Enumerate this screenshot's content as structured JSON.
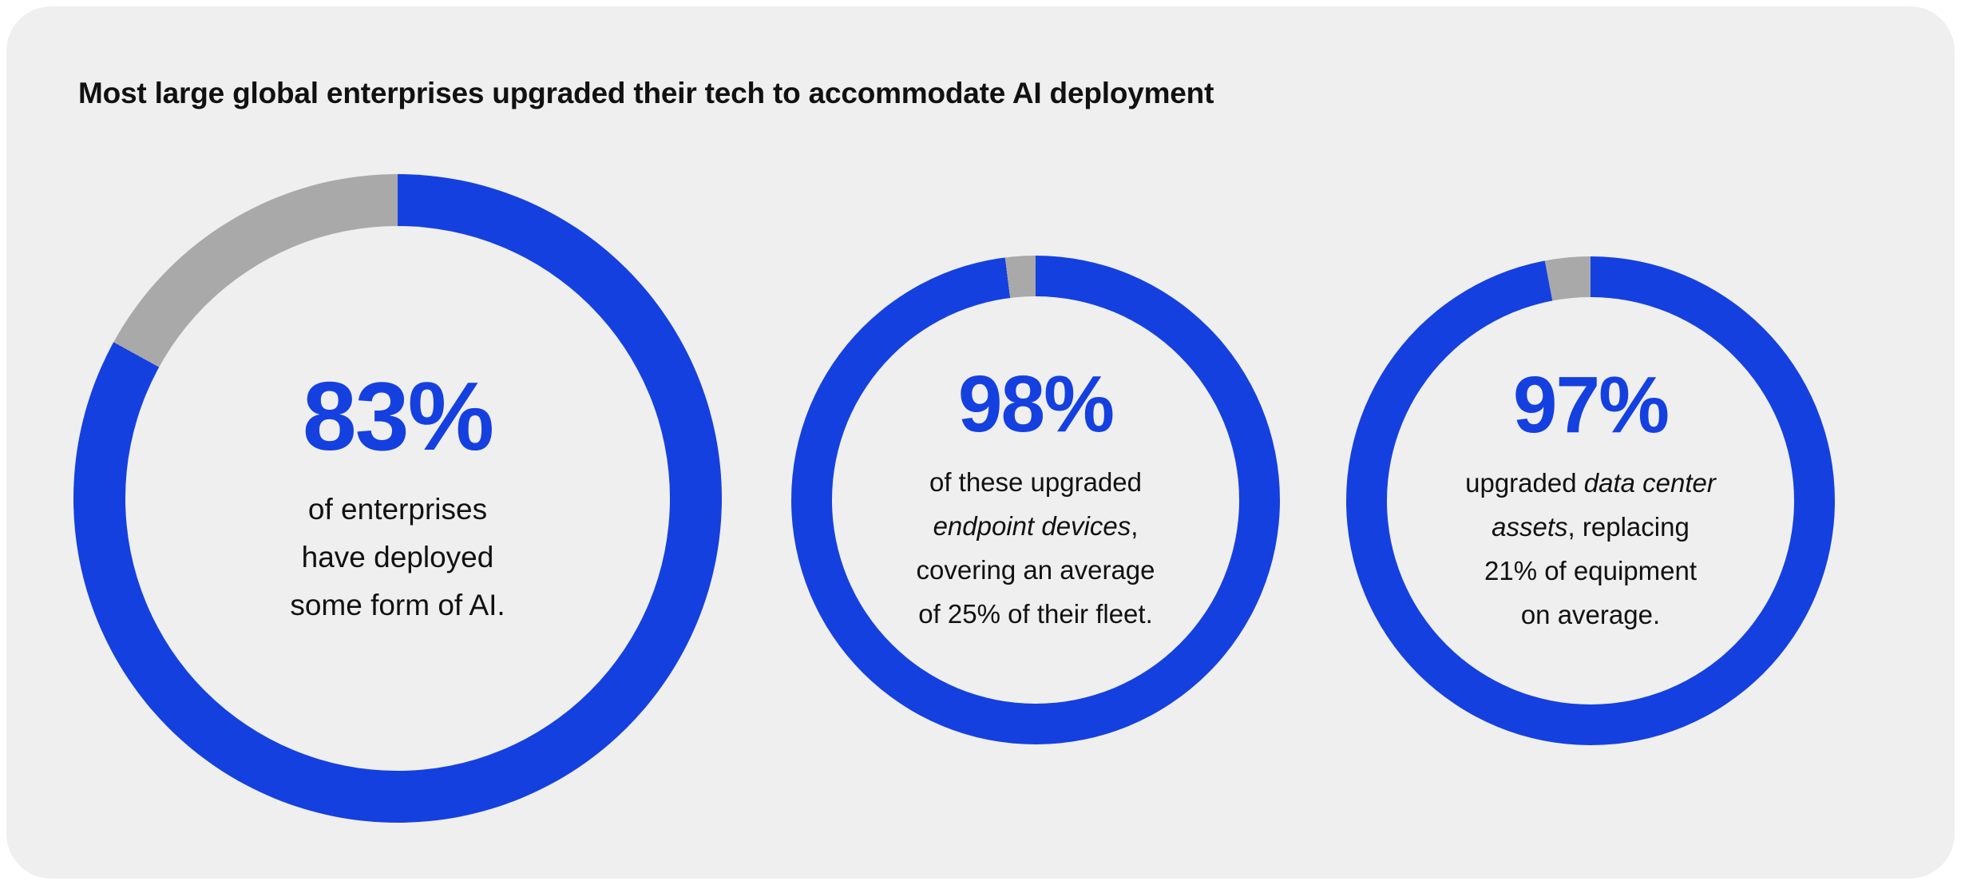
{
  "title": "Most large global enterprises upgraded their tech to accommodate AI deployment",
  "colors": {
    "page_background": "#ffffff",
    "card_background": "#EFEFEF",
    "accent_blue": "#1540E0",
    "remainder_gray": "#A9A9A9",
    "text_dark": "#111111"
  },
  "chart_data": [
    {
      "type": "pie",
      "variant": "donut",
      "center_label": "83%",
      "value_pct": 83,
      "remainder_pct": 17,
      "start_angle_deg": 0,
      "direction": "clockwise",
      "slices": [
        {
          "label": "have deployed AI",
          "value": 83,
          "color": "#1540E0"
        },
        {
          "label": "remainder",
          "value": 17,
          "color": "#A9A9A9"
        }
      ],
      "description_lines": [
        [
          {
            "text": "of enterprises",
            "italic": false
          }
        ],
        [
          {
            "text": "have deployed",
            "italic": false
          }
        ],
        [
          {
            "text": "some form of AI.",
            "italic": false
          }
        ]
      ]
    },
    {
      "type": "pie",
      "variant": "donut",
      "center_label": "98%",
      "value_pct": 98,
      "remainder_pct": 2,
      "start_angle_deg": 0,
      "direction": "clockwise",
      "slices": [
        {
          "label": "upgraded endpoint devices",
          "value": 98,
          "color": "#1540E0"
        },
        {
          "label": "remainder",
          "value": 2,
          "color": "#A9A9A9"
        }
      ],
      "description_lines": [
        [
          {
            "text": "of these upgraded",
            "italic": false
          }
        ],
        [
          {
            "text": "endpoint devices",
            "italic": true
          },
          {
            "text": ",",
            "italic": false
          }
        ],
        [
          {
            "text": "covering an average",
            "italic": false
          }
        ],
        [
          {
            "text": "of 25% of their fleet.",
            "italic": false
          }
        ]
      ]
    },
    {
      "type": "pie",
      "variant": "donut",
      "center_label": "97%",
      "value_pct": 97,
      "remainder_pct": 3,
      "start_angle_deg": 0,
      "direction": "clockwise",
      "slices": [
        {
          "label": "upgraded data center assets",
          "value": 97,
          "color": "#1540E0"
        },
        {
          "label": "remainder",
          "value": 3,
          "color": "#A9A9A9"
        }
      ],
      "description_lines": [
        [
          {
            "text": "upgraded ",
            "italic": false
          },
          {
            "text": "data center",
            "italic": true
          }
        ],
        [
          {
            "text": "assets",
            "italic": true
          },
          {
            "text": ", replacing",
            "italic": false
          }
        ],
        [
          {
            "text": "21% of equipment",
            "italic": false
          }
        ],
        [
          {
            "text": "on average.",
            "italic": false
          }
        ]
      ]
    }
  ]
}
